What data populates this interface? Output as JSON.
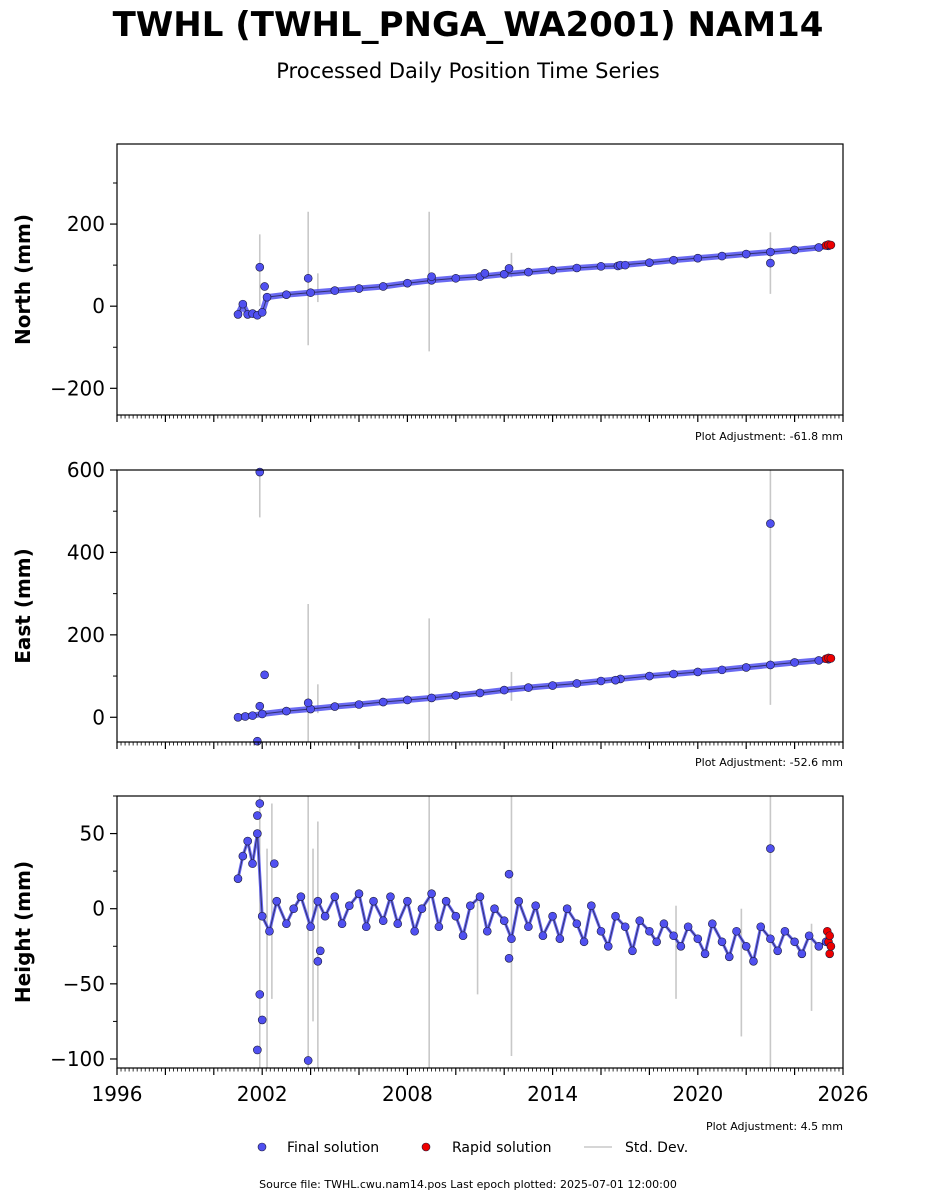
{
  "header": {
    "title": "TWHL (TWHL_PNGA_WA2001) NAM14",
    "subtitle": "Processed Daily Position Time Series"
  },
  "colors": {
    "final": "#5050f0",
    "rapid": "#ee0000",
    "std": "#c8c8c8",
    "edge": "#1a1a3a"
  },
  "legend": {
    "final": "Final solution",
    "rapid": "Rapid solution",
    "std": "Std. Dev."
  },
  "footer": "Source file: TWHL.cwu.nam14.pos  Last epoch plotted: 2025-07-01 12:00:00",
  "chart_data": [
    {
      "type": "scatter",
      "ylabel": "North (mm)",
      "adjustment": "Plot Adjustment: -61.8 mm",
      "xlim": [
        1996,
        2026
      ],
      "ylim": [
        -265,
        395
      ],
      "yticks": [
        -200,
        0,
        200
      ],
      "ytick_labels": [
        "−200",
        "0",
        "200"
      ],
      "series": [
        {
          "kind": "final",
          "x": [
            2001.0,
            2001.2,
            2001.4,
            2001.6,
            2001.8,
            2002.0,
            2002.2,
            2003.0,
            2004.0,
            2005.0,
            2006.0,
            2007.0,
            2008.0,
            2009.0,
            2010.0,
            2011.0,
            2012.0,
            2013.0,
            2014.0,
            2015.0,
            2016.0,
            2016.7,
            2016.8,
            2018.0,
            2019.0,
            2020.0,
            2021.0,
            2022.0,
            2023.0,
            2024.0,
            2025.0,
            2025.4
          ],
          "y": [
            -20,
            5,
            -20,
            -18,
            -22,
            -15,
            22,
            28,
            33,
            38,
            43,
            48,
            56,
            63,
            68,
            72,
            78,
            83,
            88,
            93,
            97,
            98,
            100,
            106,
            112,
            117,
            122,
            127,
            132,
            137,
            143,
            147
          ]
        },
        {
          "kind": "final",
          "x": [
            2001.9,
            2002.1,
            2003.9,
            2009.0,
            2011.2,
            2012.2,
            2017.0,
            2023.0
          ],
          "y": [
            95,
            48,
            68,
            72,
            80,
            92,
            100,
            105
          ]
        },
        {
          "kind": "rapid",
          "x": [
            2025.3,
            2025.4,
            2025.5
          ],
          "y": [
            148,
            150,
            149
          ]
        }
      ],
      "errorbars": [
        {
          "x": 2001.9,
          "low": 0,
          "high": 175
        },
        {
          "x": 2003.9,
          "low": -95,
          "high": 230
        },
        {
          "x": 2004.3,
          "low": 10,
          "high": 80
        },
        {
          "x": 2008.9,
          "low": -110,
          "high": 230
        },
        {
          "x": 2012.3,
          "low": 70,
          "high": 130
        },
        {
          "x": 2023.0,
          "low": 30,
          "high": 180
        }
      ]
    },
    {
      "type": "scatter",
      "ylabel": "East (mm)",
      "adjustment": "Plot Adjustment: -52.6 mm",
      "xlim": [
        1996,
        2026
      ],
      "ylim": [
        -60,
        600
      ],
      "yticks": [
        0,
        200,
        400,
        600
      ],
      "ytick_labels": [
        "0",
        "200",
        "400",
        "600"
      ],
      "series": [
        {
          "kind": "final",
          "x": [
            2001.0,
            2001.3,
            2001.6,
            2002.0,
            2003.0,
            2004.0,
            2005.0,
            2006.0,
            2007.0,
            2008.0,
            2009.0,
            2010.0,
            2011.0,
            2012.0,
            2013.0,
            2014.0,
            2015.0,
            2016.0,
            2016.8,
            2018.0,
            2019.0,
            2020.0,
            2021.0,
            2022.0,
            2023.0,
            2024.0,
            2025.0,
            2025.4
          ],
          "y": [
            0,
            2,
            4,
            8,
            15,
            20,
            26,
            31,
            37,
            42,
            47,
            53,
            59,
            66,
            72,
            77,
            82,
            88,
            93,
            100,
            105,
            110,
            115,
            121,
            127,
            133,
            138,
            141
          ]
        },
        {
          "kind": "final",
          "x": [
            2001.9,
            2002.1,
            2001.9,
            2023.0,
            2001.8,
            2003.9,
            2016.6
          ],
          "y": [
            595,
            103,
            27,
            470,
            -58,
            35,
            90
          ]
        },
        {
          "kind": "rapid",
          "x": [
            2025.3,
            2025.4,
            2025.5
          ],
          "y": [
            142,
            144,
            143
          ]
        }
      ],
      "errorbars": [
        {
          "x": 2001.9,
          "low": 485,
          "high": 600
        },
        {
          "x": 2003.9,
          "low": -60,
          "high": 275
        },
        {
          "x": 2004.3,
          "low": 10,
          "high": 80
        },
        {
          "x": 2008.9,
          "low": -60,
          "high": 240
        },
        {
          "x": 2012.3,
          "low": 40,
          "high": 110
        },
        {
          "x": 2023.0,
          "low": 30,
          "high": 600
        }
      ]
    },
    {
      "type": "scatter",
      "ylabel": "Height (mm)",
      "adjustment": "Plot Adjustment: 4.5 mm",
      "xlim": [
        1996,
        2026
      ],
      "ylim": [
        -106,
        75
      ],
      "yticks": [
        -100,
        -50,
        0,
        50
      ],
      "ytick_labels": [
        "−100",
        "−50",
        "0",
        "50"
      ],
      "xticks": [
        1996,
        2002,
        2008,
        2014,
        2020,
        2026
      ],
      "series": [
        {
          "kind": "final",
          "x": [
            2001.0,
            2001.2,
            2001.4,
            2001.6,
            2001.8,
            2002.0,
            2002.3,
            2002.6,
            2003.0,
            2003.3,
            2003.6,
            2004.0,
            2004.3,
            2004.6,
            2005.0,
            2005.3,
            2005.6,
            2006.0,
            2006.3,
            2006.6,
            2007.0,
            2007.3,
            2007.6,
            2008.0,
            2008.3,
            2008.6,
            2009.0,
            2009.3,
            2009.6,
            2010.0,
            2010.3,
            2010.6,
            2011.0,
            2011.3,
            2011.6,
            2012.0,
            2012.3,
            2012.6,
            2013.0,
            2013.3,
            2013.6,
            2014.0,
            2014.3,
            2014.6,
            2015.0,
            2015.3,
            2015.6,
            2016.0,
            2016.3,
            2016.6,
            2017.0,
            2017.3,
            2017.6,
            2018.0,
            2018.3,
            2018.6,
            2019.0,
            2019.3,
            2019.6,
            2020.0,
            2020.3,
            2020.6,
            2021.0,
            2021.3,
            2021.6,
            2022.0,
            2022.3,
            2022.6,
            2023.0,
            2023.3,
            2023.6,
            2024.0,
            2024.3,
            2024.6,
            2025.0,
            2025.3
          ],
          "y": [
            20,
            35,
            45,
            30,
            50,
            -5,
            -15,
            5,
            -10,
            0,
            8,
            -12,
            5,
            -5,
            8,
            -10,
            2,
            10,
            -12,
            5,
            -8,
            8,
            -10,
            5,
            -15,
            0,
            10,
            -12,
            5,
            -5,
            -18,
            2,
            8,
            -15,
            0,
            -8,
            -20,
            5,
            -12,
            2,
            -18,
            -5,
            -20,
            0,
            -10,
            -22,
            2,
            -15,
            -25,
            -5,
            -12,
            -28,
            -8,
            -15,
            -22,
            -10,
            -18,
            -25,
            -12,
            -20,
            -30,
            -10,
            -22,
            -32,
            -15,
            -25,
            -35,
            -12,
            -20,
            -28,
            -15,
            -22,
            -30,
            -18,
            -25,
            -22
          ]
        },
        {
          "kind": "final",
          "x": [
            2001.9,
            2001.8,
            2001.9,
            2002.0,
            2001.8,
            2003.9,
            2004.3,
            2004.4,
            2012.2,
            2012.2,
            2023.0,
            2002.5
          ],
          "y": [
            70,
            62,
            -57,
            -74,
            -94,
            -101,
            -35,
            -28,
            23,
            -33,
            40,
            30
          ]
        },
        {
          "kind": "rapid",
          "x": [
            2025.35,
            2025.4,
            2025.45,
            2025.5,
            2025.45
          ],
          "y": [
            -15,
            -22,
            -30,
            -25,
            -18
          ]
        }
      ],
      "errorbars": [
        {
          "x": 2001.9,
          "low": -106,
          "high": 75
        },
        {
          "x": 2002.2,
          "low": -106,
          "high": 40
        },
        {
          "x": 2002.4,
          "low": -60,
          "high": 70
        },
        {
          "x": 2003.9,
          "low": -106,
          "high": 75
        },
        {
          "x": 2004.1,
          "low": -75,
          "high": 40
        },
        {
          "x": 2004.3,
          "low": -106,
          "high": 58
        },
        {
          "x": 2008.9,
          "low": -106,
          "high": 75
        },
        {
          "x": 2010.9,
          "low": -57,
          "high": 5
        },
        {
          "x": 2012.3,
          "low": -98,
          "high": 75
        },
        {
          "x": 2019.1,
          "low": -60,
          "high": 2
        },
        {
          "x": 2021.8,
          "low": -85,
          "high": 0
        },
        {
          "x": 2023.0,
          "low": -106,
          "high": 75
        },
        {
          "x": 2024.7,
          "low": -68,
          "high": -10
        }
      ]
    }
  ]
}
